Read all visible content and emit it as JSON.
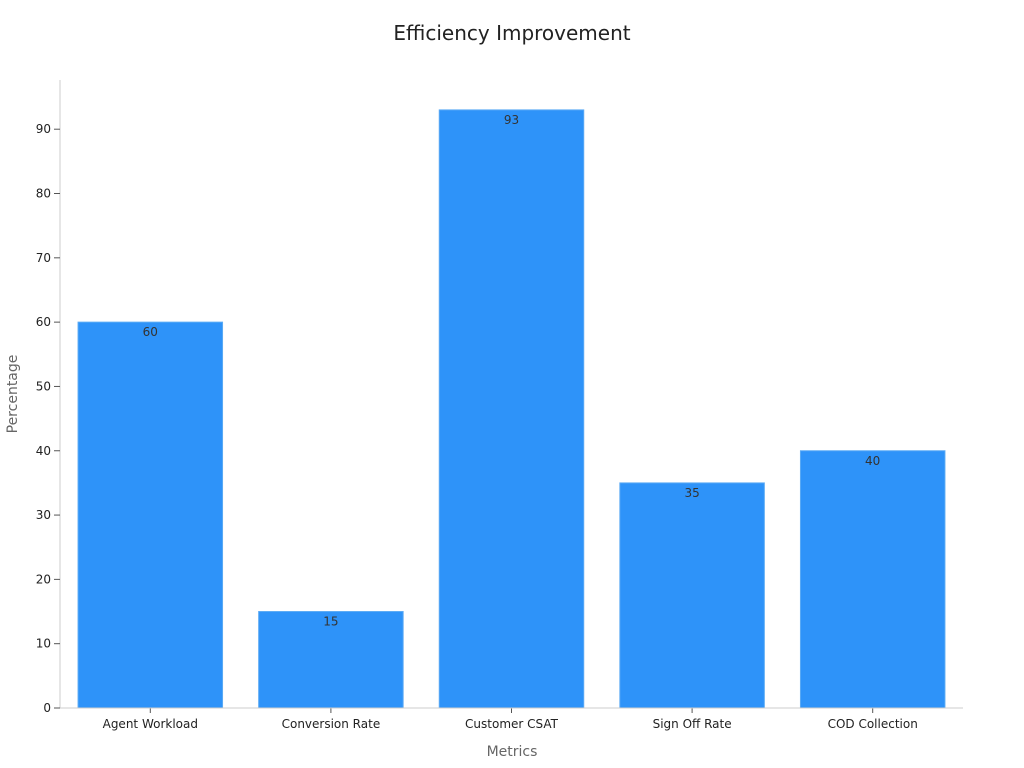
{
  "colors": {
    "bar": "#2e93f9",
    "bar_edge": "#5aaaf5",
    "axis": "#cccccc",
    "tick": "#555555"
  },
  "chart_data": {
    "type": "bar",
    "title": "Efficiency Improvement",
    "xlabel": "Metrics",
    "ylabel": "Percentage",
    "categories": [
      "Agent Workload",
      "Conversion Rate",
      "Customer CSAT",
      "Sign Off Rate",
      "COD Collection"
    ],
    "values": [
      60,
      15,
      93,
      35,
      40
    ],
    "ylim": [
      0,
      97.65
    ],
    "yticks": [
      0,
      10,
      20,
      30,
      40,
      50,
      60,
      70,
      80,
      90
    ],
    "grid": false,
    "legend": "none",
    "data_labels": true
  }
}
